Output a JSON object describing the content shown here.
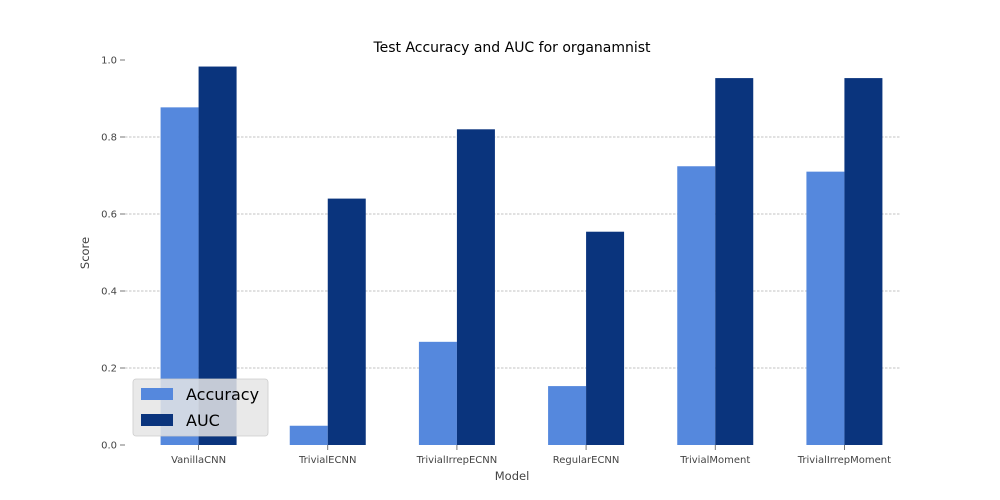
{
  "chart_data": {
    "type": "bar",
    "title": "Test Accuracy and AUC for organamnist",
    "xlabel": "Model",
    "ylabel": "Score",
    "ylim": [
      0,
      1.0
    ],
    "yticks": [
      "0.0",
      "0.2",
      "0.4",
      "0.6",
      "0.8",
      "1.0"
    ],
    "categories": [
      "VanillaCNN",
      "TrivialECNN",
      "TrivialIrrepECNN",
      "RegularECNN",
      "TrivialMoment",
      "TrivialIrrepMoment"
    ],
    "series": [
      {
        "name": "Accuracy",
        "color": "#5588dd",
        "values": [
          0.877,
          0.05,
          0.268,
          0.153,
          0.724,
          0.71
        ]
      },
      {
        "name": "AUC",
        "color": "#0a347d",
        "values": [
          0.983,
          0.64,
          0.82,
          0.554,
          0.953,
          0.953
        ]
      }
    ],
    "grid": true,
    "legend_position": "bottom-left"
  }
}
